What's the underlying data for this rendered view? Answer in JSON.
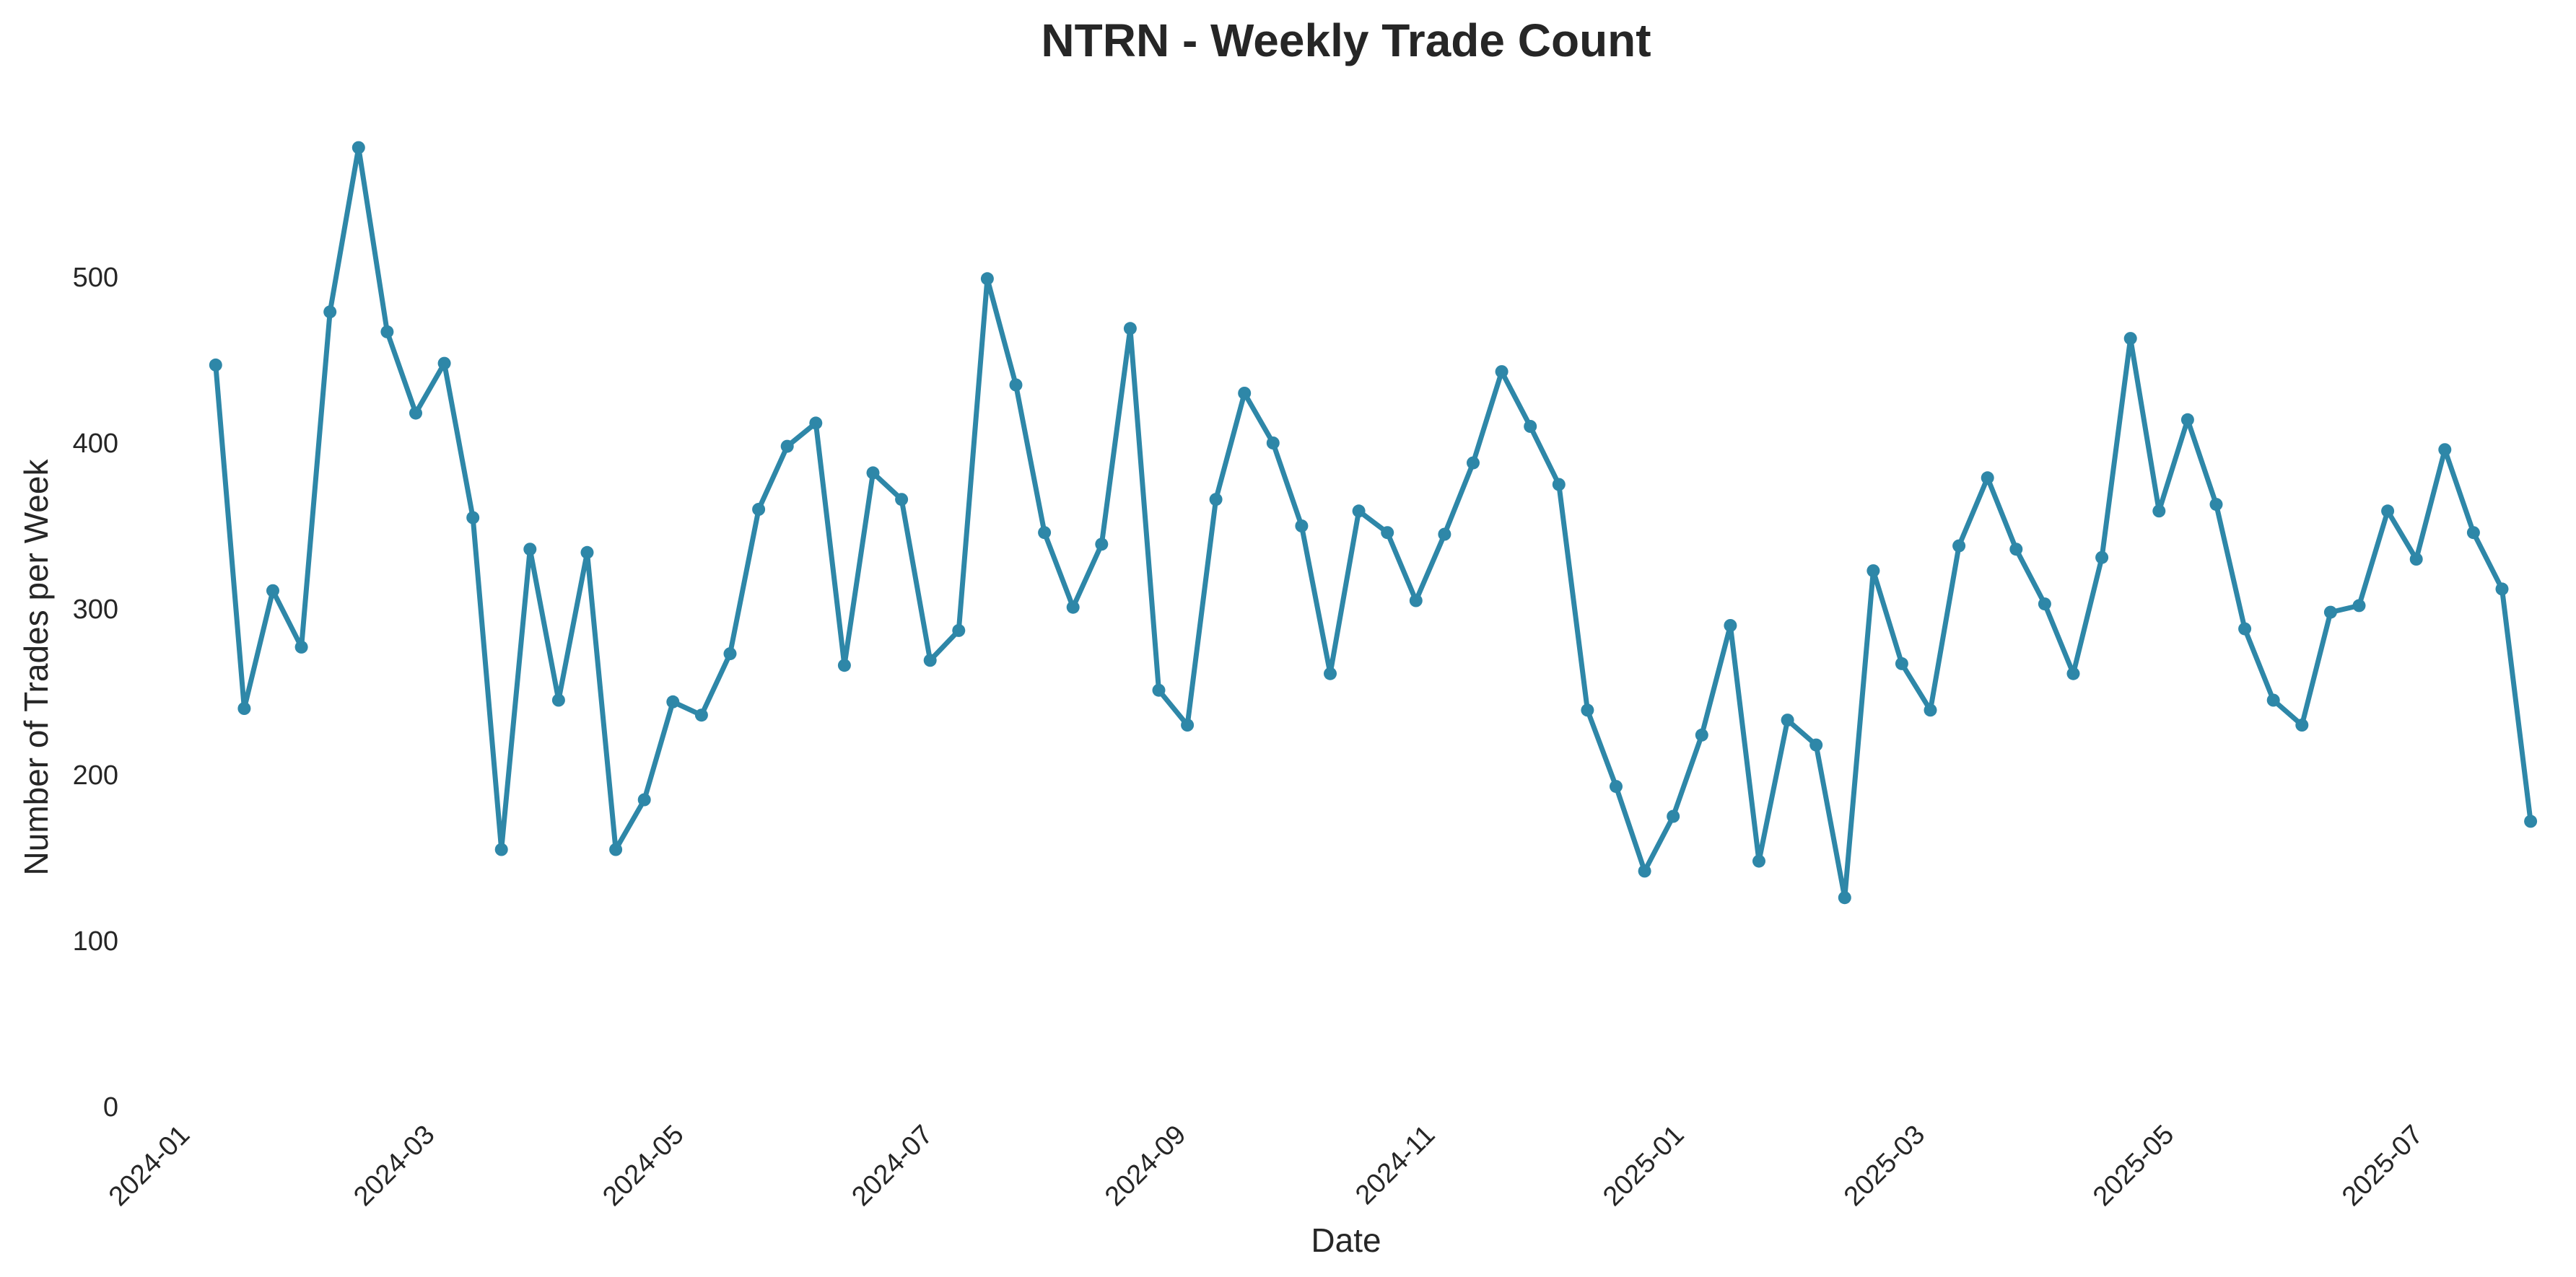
{
  "chart_data": {
    "type": "line",
    "title": "NTRN - Weekly Trade Count",
    "xlabel": "Date",
    "ylabel": "Number of Trades per Week",
    "ylim": [
      0,
      600
    ],
    "yticks": [
      0,
      100,
      200,
      300,
      400,
      500
    ],
    "xlim": [
      "2023-12-17",
      "2025-08-02"
    ],
    "xticks": [
      "2024-01",
      "2024-03",
      "2024-05",
      "2024-07",
      "2024-09",
      "2024-11",
      "2025-01",
      "2025-03",
      "2025-05",
      "2025-07"
    ],
    "grid": false,
    "legend": "none",
    "line_color": "#2e87a8",
    "series": [
      {
        "x": [
          "2024-01-07",
          "2024-01-14",
          "2024-01-21",
          "2024-01-28",
          "2024-02-04",
          "2024-02-11",
          "2024-02-18",
          "2024-02-25",
          "2024-03-03",
          "2024-03-10",
          "2024-03-17",
          "2024-03-24",
          "2024-03-31",
          "2024-04-07",
          "2024-04-14",
          "2024-04-21",
          "2024-04-28",
          "2024-05-05",
          "2024-05-12",
          "2024-05-19",
          "2024-05-26",
          "2024-06-02",
          "2024-06-09",
          "2024-06-16",
          "2024-06-23",
          "2024-06-30",
          "2024-07-07",
          "2024-07-14",
          "2024-07-21",
          "2024-07-28",
          "2024-08-04",
          "2024-08-11",
          "2024-08-18",
          "2024-08-25",
          "2024-09-01",
          "2024-09-08",
          "2024-09-15",
          "2024-09-22",
          "2024-09-29",
          "2024-10-06",
          "2024-10-13",
          "2024-10-20",
          "2024-10-27",
          "2024-11-03",
          "2024-11-10",
          "2024-11-17",
          "2024-11-24",
          "2024-12-01",
          "2024-12-08",
          "2024-12-15",
          "2024-12-22",
          "2024-12-29",
          "2025-01-05",
          "2025-01-12",
          "2025-01-19",
          "2025-01-26",
          "2025-02-02",
          "2025-02-09",
          "2025-02-16",
          "2025-02-23",
          "2025-03-02",
          "2025-03-09",
          "2025-03-16",
          "2025-03-23",
          "2025-03-30",
          "2025-04-06",
          "2025-04-13",
          "2025-04-20",
          "2025-04-27",
          "2025-05-04",
          "2025-05-11",
          "2025-05-18",
          "2025-05-25",
          "2025-06-01",
          "2025-06-08",
          "2025-06-15",
          "2025-06-22",
          "2025-06-29",
          "2025-07-06",
          "2025-07-13",
          "2025-07-20",
          "2025-07-27"
        ],
        "values": [
          447,
          240,
          311,
          277,
          479,
          578,
          467,
          418,
          448,
          355,
          155,
          336,
          245,
          334,
          155,
          185,
          244,
          236,
          273,
          360,
          398,
          412,
          266,
          382,
          366,
          269,
          287,
          499,
          435,
          346,
          301,
          339,
          469,
          251,
          230,
          366,
          430,
          400,
          350,
          261,
          359,
          346,
          305,
          345,
          388,
          443,
          410,
          375,
          239,
          193,
          142,
          175,
          224,
          290,
          148,
          233,
          218,
          126,
          323,
          267,
          239,
          338,
          379,
          336,
          303,
          261,
          331,
          463,
          359,
          414,
          363,
          288,
          245,
          230,
          298,
          302,
          359,
          330,
          396,
          346,
          312,
          172
        ]
      }
    ]
  }
}
